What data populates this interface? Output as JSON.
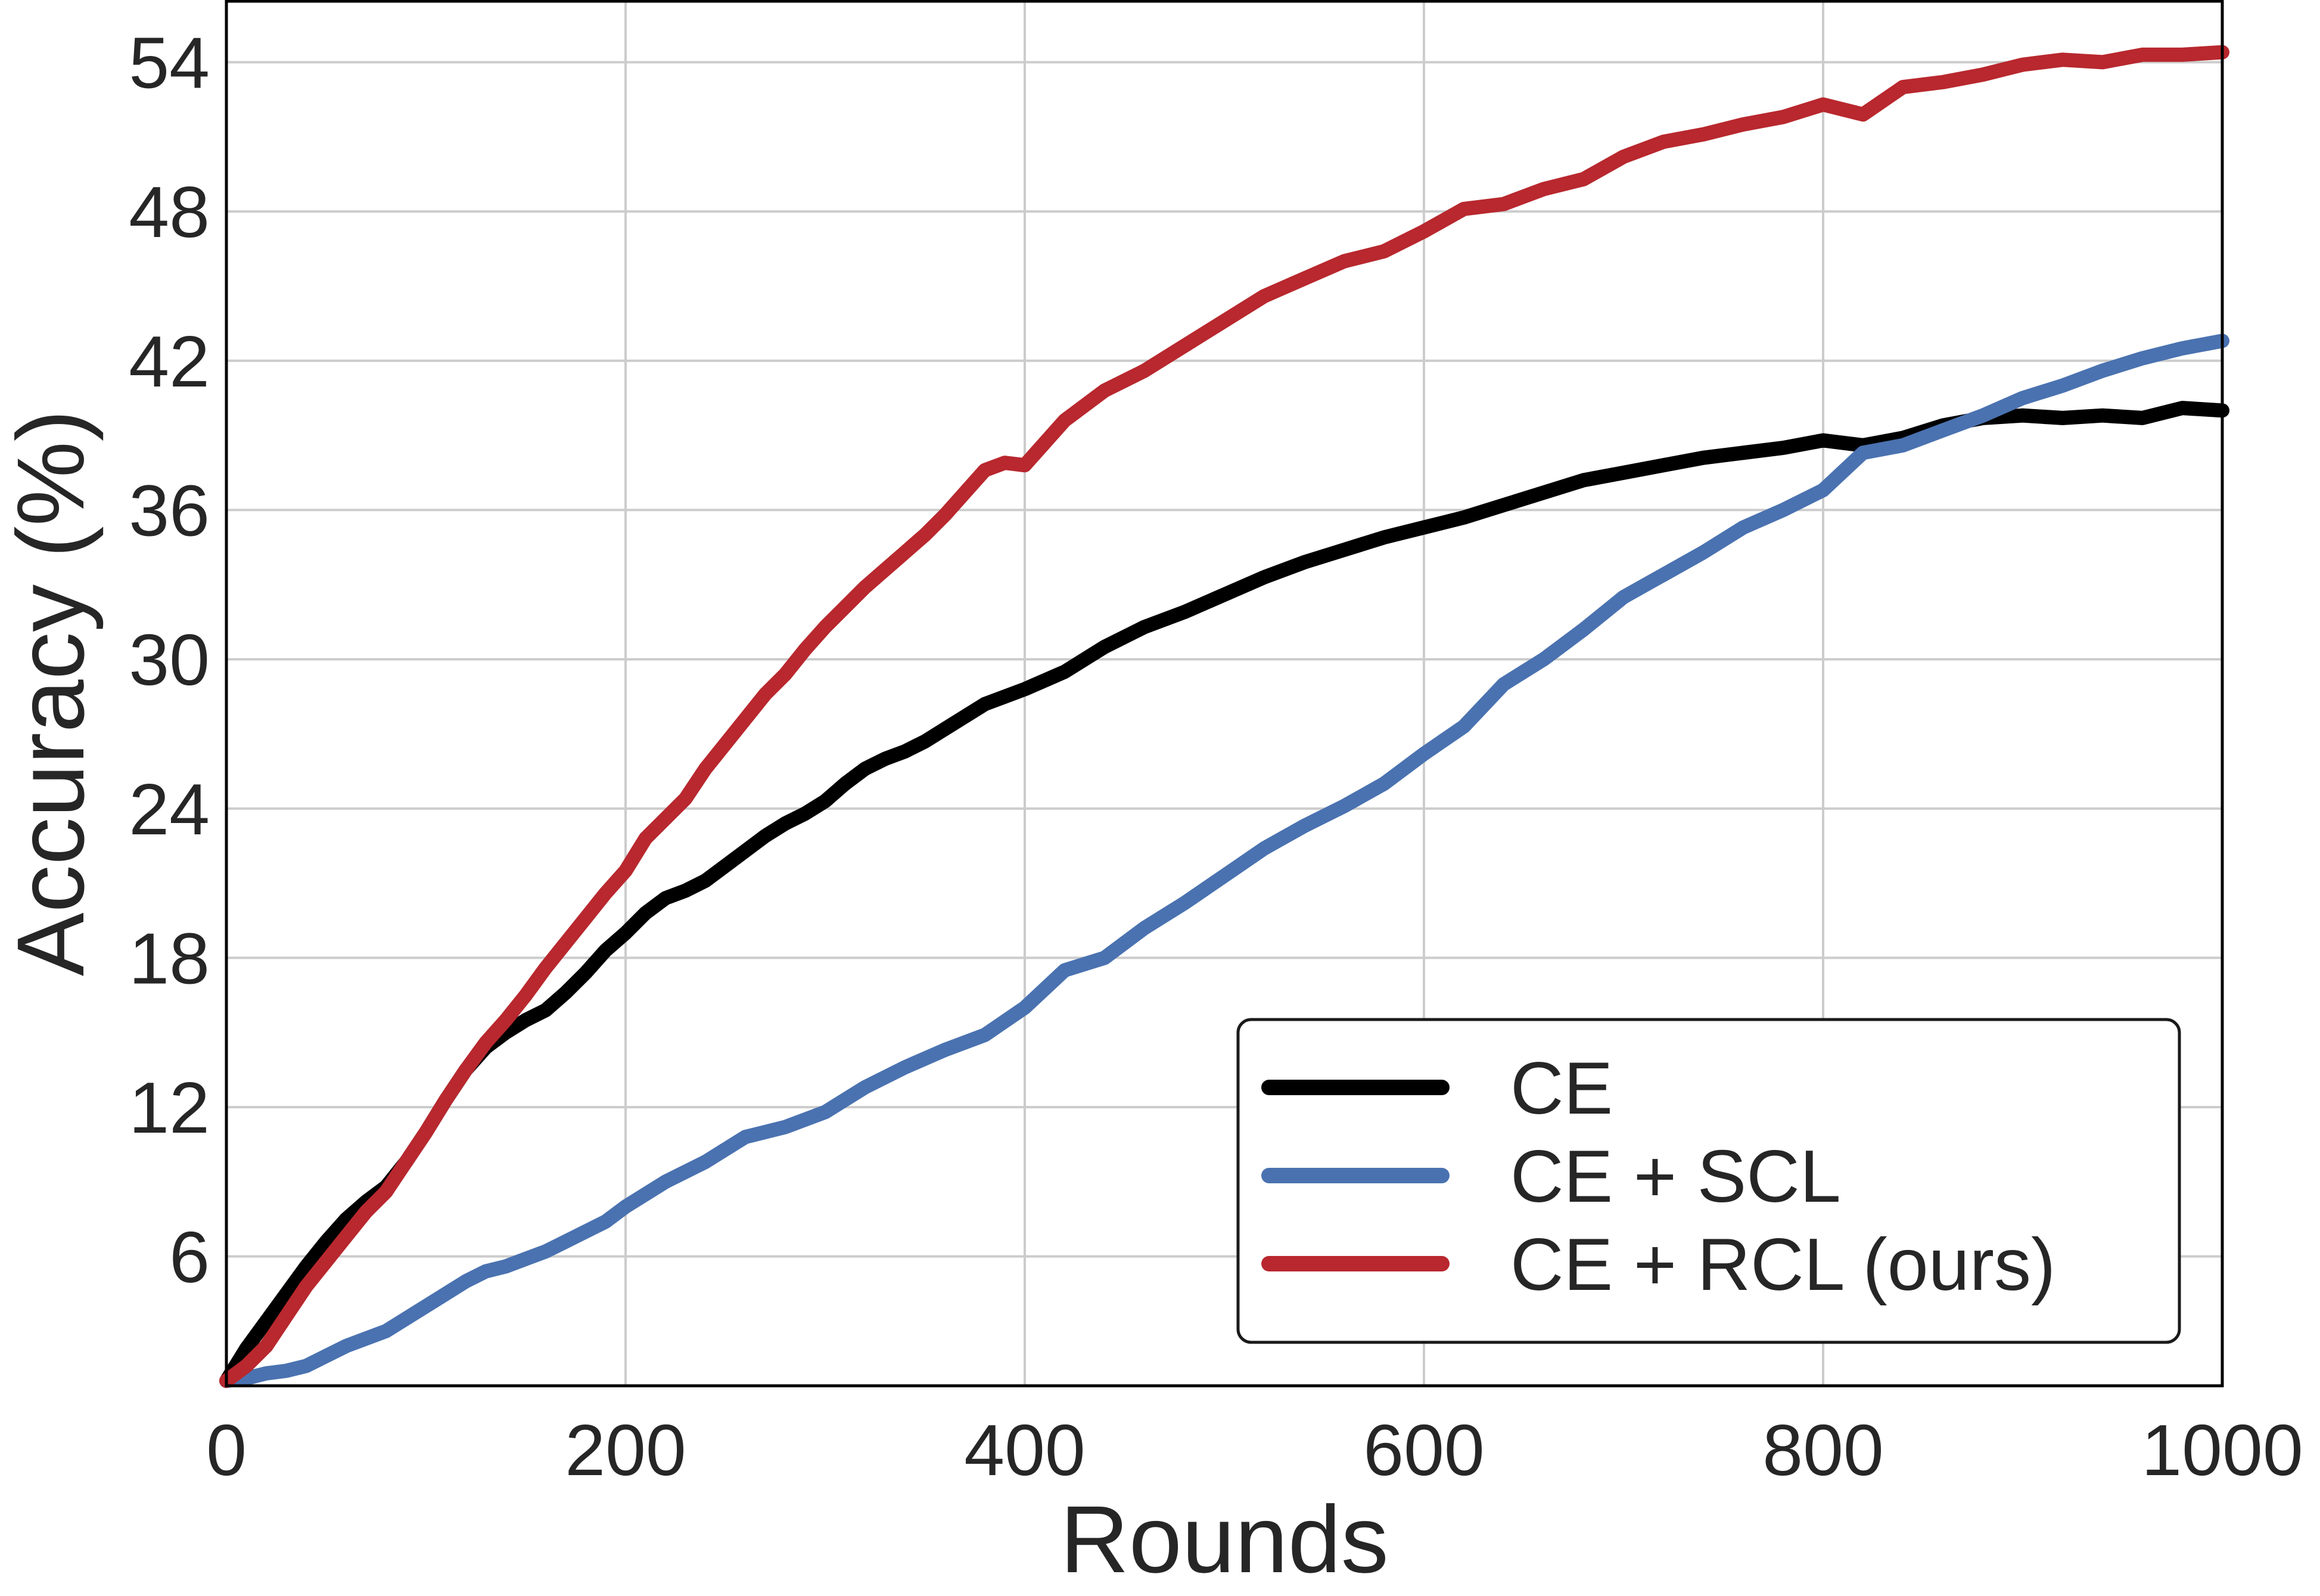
{
  "chart_data": {
    "type": "line",
    "xlabel": "Rounds",
    "ylabel": "Accuracy (%)",
    "xlim": [
      0,
      1000
    ],
    "ylim": [
      0.8,
      56.5
    ],
    "xticks": [
      0,
      200,
      400,
      600,
      800,
      1000
    ],
    "yticks": [
      6,
      12,
      18,
      24,
      30,
      36,
      42,
      48,
      54
    ],
    "xtick_labels": [
      "0",
      "200",
      "400",
      "600",
      "800",
      "1000"
    ],
    "ytick_labels": [
      "6",
      "12",
      "18",
      "24",
      "30",
      "36",
      "42",
      "48",
      "54"
    ],
    "grid": true,
    "legend_position": "lower right",
    "series": [
      {
        "name": "CE",
        "color": "#000000",
        "x": [
          0,
          10,
          20,
          30,
          40,
          50,
          60,
          70,
          80,
          90,
          100,
          110,
          120,
          130,
          140,
          150,
          160,
          170,
          180,
          190,
          200,
          210,
          220,
          230,
          240,
          250,
          260,
          270,
          280,
          290,
          300,
          310,
          320,
          330,
          340,
          350,
          360,
          370,
          380,
          390,
          400,
          420,
          440,
          460,
          480,
          500,
          520,
          540,
          560,
          580,
          600,
          620,
          640,
          660,
          680,
          700,
          720,
          740,
          760,
          780,
          800,
          820,
          840,
          860,
          880,
          900,
          920,
          940,
          960,
          980,
          1000
        ],
        "values": [
          1.0,
          2.3,
          3.4,
          4.5,
          5.6,
          6.6,
          7.5,
          8.2,
          8.8,
          9.8,
          11.0,
          12.3,
          13.5,
          14.4,
          15.0,
          15.5,
          15.9,
          16.6,
          17.4,
          18.3,
          19.0,
          19.8,
          20.4,
          20.7,
          21.1,
          21.7,
          22.3,
          22.9,
          23.4,
          23.8,
          24.3,
          25.0,
          25.6,
          26.0,
          26.3,
          26.7,
          27.2,
          27.7,
          28.2,
          28.5,
          28.8,
          29.5,
          30.5,
          31.3,
          31.9,
          32.6,
          33.3,
          33.9,
          34.4,
          34.9,
          35.3,
          35.7,
          36.2,
          36.7,
          37.2,
          37.5,
          37.8,
          38.1,
          38.3,
          38.5,
          38.8,
          38.6,
          38.9,
          39.4,
          39.7,
          39.8,
          39.7,
          39.8,
          39.7,
          40.1,
          40.0
        ]
      },
      {
        "name": "CE + SCL",
        "color": "#4a72b0",
        "x": [
          0,
          10,
          20,
          30,
          40,
          50,
          60,
          70,
          80,
          90,
          100,
          110,
          120,
          130,
          140,
          150,
          160,
          170,
          180,
          190,
          200,
          220,
          240,
          260,
          280,
          300,
          320,
          340,
          360,
          380,
          400,
          420,
          440,
          460,
          480,
          500,
          520,
          540,
          560,
          580,
          600,
          620,
          640,
          660,
          680,
          700,
          720,
          740,
          760,
          780,
          800,
          820,
          840,
          860,
          880,
          900,
          920,
          940,
          960,
          980,
          1000
        ],
        "values": [
          1.0,
          1.1,
          1.3,
          1.4,
          1.6,
          2.0,
          2.4,
          2.7,
          3.0,
          3.5,
          4.0,
          4.5,
          5.0,
          5.4,
          5.6,
          5.9,
          6.2,
          6.6,
          7.0,
          7.4,
          8.0,
          9.0,
          9.8,
          10.8,
          11.2,
          11.8,
          12.8,
          13.6,
          14.3,
          14.9,
          16.0,
          17.5,
          18.0,
          19.2,
          20.2,
          21.3,
          22.4,
          23.3,
          24.1,
          25.0,
          26.2,
          27.3,
          29.0,
          30.0,
          31.2,
          32.5,
          33.4,
          34.3,
          35.3,
          36.0,
          36.8,
          38.3,
          38.6,
          39.2,
          39.8,
          40.5,
          41.0,
          41.6,
          42.1,
          42.5,
          42.8
        ]
      },
      {
        "name": "CE + RCL (ours)",
        "color": "#b8282e",
        "x": [
          0,
          10,
          20,
          30,
          40,
          50,
          60,
          70,
          80,
          90,
          100,
          110,
          120,
          130,
          140,
          150,
          160,
          170,
          180,
          190,
          200,
          210,
          220,
          230,
          240,
          250,
          260,
          270,
          280,
          290,
          300,
          310,
          320,
          330,
          340,
          350,
          360,
          370,
          380,
          390,
          400,
          420,
          440,
          460,
          480,
          500,
          520,
          540,
          560,
          580,
          600,
          620,
          640,
          660,
          680,
          700,
          720,
          740,
          760,
          780,
          800,
          820,
          840,
          860,
          880,
          900,
          920,
          940,
          960,
          980,
          1000
        ],
        "values": [
          1.0,
          1.6,
          2.4,
          3.6,
          4.8,
          5.8,
          6.8,
          7.8,
          8.6,
          9.8,
          11.0,
          12.3,
          13.5,
          14.6,
          15.5,
          16.5,
          17.6,
          18.6,
          19.6,
          20.6,
          21.5,
          22.8,
          23.6,
          24.4,
          25.6,
          26.6,
          27.6,
          28.6,
          29.4,
          30.4,
          31.3,
          32.1,
          32.9,
          33.6,
          34.3,
          35.0,
          35.8,
          36.7,
          37.6,
          37.9,
          37.8,
          39.6,
          40.8,
          41.6,
          42.6,
          43.6,
          44.6,
          45.3,
          46.0,
          46.4,
          47.2,
          48.1,
          48.3,
          48.9,
          49.3,
          50.2,
          50.8,
          51.1,
          51.5,
          51.8,
          52.3,
          51.9,
          53.0,
          53.2,
          53.5,
          53.9,
          54.1,
          54.0,
          54.3,
          54.3,
          54.4
        ]
      }
    ]
  }
}
